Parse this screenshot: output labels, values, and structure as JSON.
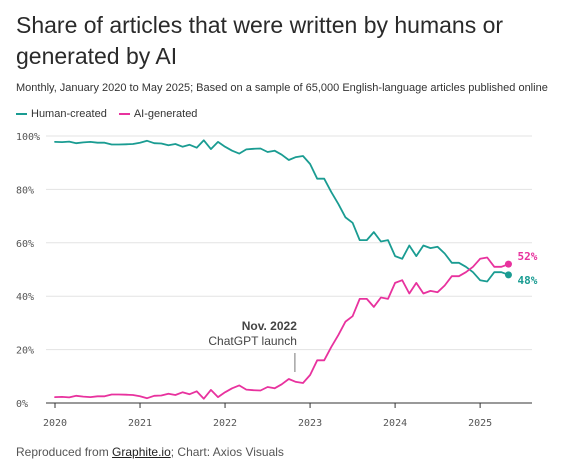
{
  "title": "Share of articles that were written by humans or generated by AI",
  "subtitle": "Monthly, January 2020 to May 2025; Based on a sample of 65,000 English-language articles published online",
  "footer": {
    "prefix": "Reproduced from ",
    "link": "Graphite.io",
    "suffix": "; Chart: Axios Visuals"
  },
  "colors": {
    "human": "#1a9c92",
    "ai": "#e8329e",
    "grid": "#e3e3e3",
    "axis": "#333333"
  },
  "chart_data": {
    "type": "line",
    "title": "Share of articles that were written by humans or generated by AI",
    "xlabel": "",
    "ylabel": "",
    "x_start": "2020-01",
    "x_end": "2025-05",
    "x_ticks": [
      "2020",
      "2021",
      "2022",
      "2023",
      "2024",
      "2025"
    ],
    "y_ticks": [
      "0%",
      "20%",
      "40%",
      "60%",
      "80%",
      "100%"
    ],
    "ylim": [
      0,
      100
    ],
    "grid": true,
    "legend": "top-left",
    "annotation": {
      "line1": "Nov. 2022",
      "line2": "ChatGPT launch",
      "x": "2022-11"
    },
    "end_labels": {
      "ai": "52%",
      "human": "48%"
    },
    "series": [
      {
        "key": "human",
        "name": "Human-created",
        "values": [
          97.8,
          97.7,
          97.9,
          97.3,
          97.6,
          97.8,
          97.5,
          97.5,
          96.8,
          96.8,
          96.9,
          97.0,
          97.5,
          98.2,
          97.3,
          97.2,
          96.5,
          97.0,
          96.0,
          96.7,
          95.6,
          98.4,
          95.1,
          97.8,
          96.0,
          94.5,
          93.4,
          95.0,
          95.2,
          95.3,
          94.0,
          94.5,
          93.0,
          91.0,
          92.1,
          92.5,
          89.5,
          84.0,
          84.0,
          79.0,
          74.5,
          69.5,
          67.5,
          61.0,
          61.0,
          64.0,
          60.5,
          61.0,
          55.0,
          54.0,
          59.0,
          55.0,
          59.0,
          58.0,
          58.5,
          56.0,
          52.5,
          52.5,
          51.0,
          49.0,
          46.0,
          45.5,
          49.0,
          49.0,
          48.0
        ]
      },
      {
        "key": "ai",
        "name": "AI-generated",
        "values": [
          2.2,
          2.3,
          2.1,
          2.7,
          2.4,
          2.2,
          2.5,
          2.5,
          3.2,
          3.2,
          3.1,
          3.0,
          2.5,
          1.8,
          2.7,
          2.8,
          3.5,
          3.0,
          4.0,
          3.3,
          4.4,
          1.6,
          4.9,
          2.2,
          4.0,
          5.5,
          6.6,
          5.0,
          4.8,
          4.7,
          6.0,
          5.5,
          7.0,
          9.0,
          7.9,
          7.5,
          10.5,
          16.0,
          16.0,
          21.0,
          25.5,
          30.5,
          32.5,
          39.0,
          39.0,
          36.0,
          39.5,
          39.0,
          45.0,
          46.0,
          41.0,
          45.0,
          41.0,
          42.0,
          41.5,
          44.0,
          47.5,
          47.5,
          49.0,
          51.0,
          54.0,
          54.5,
          51.0,
          51.0,
          52.0
        ]
      }
    ]
  }
}
